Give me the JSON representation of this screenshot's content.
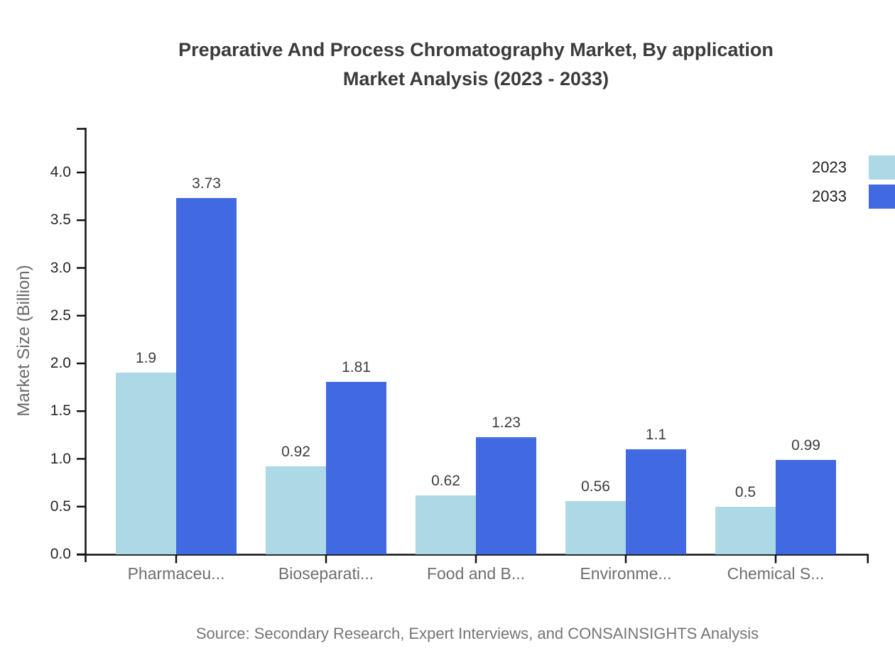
{
  "title": {
    "line1": "Preparative And Process Chromatography Market, By application",
    "line2": "Market Analysis (2023 - 2033)"
  },
  "source": "Source: Secondary Research, Expert Interviews, and CONSAINSIGHTS Analysis",
  "chart_data": {
    "type": "bar",
    "title": "Preparative And Process Chromatography Market, By application Market Analysis (2023 - 2033)",
    "xlabel": "",
    "ylabel": "Market Size (Billion)",
    "ylim": [
      0,
      4.47
    ],
    "grid": false,
    "legend_position": "top-right",
    "y_ticks": [
      "0.0",
      "0.5",
      "1.0",
      "1.5",
      "2.0",
      "2.5",
      "3.0",
      "3.5",
      "4.0"
    ],
    "categories": [
      "Pharmaceu...",
      "Bioseparati...",
      "Food and B...",
      "Environme...",
      "Chemical S..."
    ],
    "series": [
      {
        "name": "2023",
        "color": "#ADD8E6",
        "values": [
          1.9,
          0.92,
          0.62,
          0.56,
          0.5
        ],
        "labels": [
          "1.9",
          "0.92",
          "0.62",
          "0.56",
          "0.5"
        ]
      },
      {
        "name": "2033",
        "color": "#4169E1",
        "values": [
          3.73,
          1.81,
          1.23,
          1.1,
          0.99
        ],
        "labels": [
          "3.73",
          "1.81",
          "1.23",
          "1.1",
          "0.99"
        ]
      }
    ]
  },
  "colors": {
    "axis": "#111111",
    "title_text": "#3b3b3b",
    "y_tick_text": "#262626",
    "x_tick_text": "#6e6e6e",
    "value_label_text": "#3d3d3d",
    "source_text": "#757575"
  }
}
